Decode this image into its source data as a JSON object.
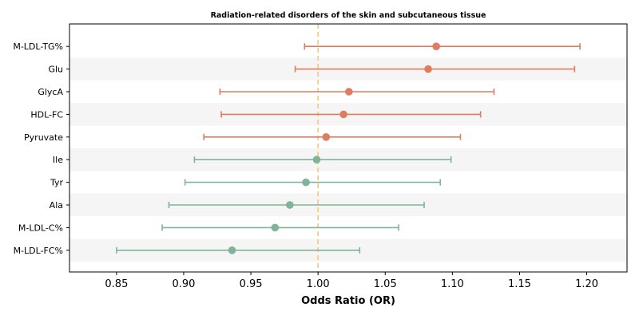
{
  "chart_data": {
    "type": "forest",
    "title": "Radiation-related disorders of the skin and subcutaneous tissue",
    "xlabel": "Odds Ratio (OR)",
    "xlim": [
      0.815,
      1.23
    ],
    "xticks": [
      "0.85",
      "0.90",
      "0.95",
      "1.00",
      "1.05",
      "1.10",
      "1.15",
      "1.20"
    ],
    "reference_line": 1.0,
    "colors": {
      "above_one": "#e07b5f",
      "below_one": "#7fb39a",
      "reference": "#f5c87a",
      "stripe": "#f5f5f5"
    },
    "rows": [
      {
        "label": "M-LDL-TG%",
        "or": 1.088,
        "lower": 0.99,
        "upper": 1.195
      },
      {
        "label": "Glu",
        "or": 1.082,
        "lower": 0.983,
        "upper": 1.191
      },
      {
        "label": "GlycA",
        "or": 1.023,
        "lower": 0.927,
        "upper": 1.131
      },
      {
        "label": "HDL-FC",
        "or": 1.019,
        "lower": 0.928,
        "upper": 1.121
      },
      {
        "label": "Pyruvate",
        "or": 1.006,
        "lower": 0.915,
        "upper": 1.106
      },
      {
        "label": "Ile",
        "or": 0.999,
        "lower": 0.908,
        "upper": 1.099
      },
      {
        "label": "Tyr",
        "or": 0.991,
        "lower": 0.901,
        "upper": 1.091
      },
      {
        "label": "Ala",
        "or": 0.979,
        "lower": 0.889,
        "upper": 1.079
      },
      {
        "label": "M-LDL-C%",
        "or": 0.968,
        "lower": 0.884,
        "upper": 1.06
      },
      {
        "label": "M-LDL-FC%",
        "or": 0.936,
        "lower": 0.85,
        "upper": 1.031
      }
    ]
  }
}
